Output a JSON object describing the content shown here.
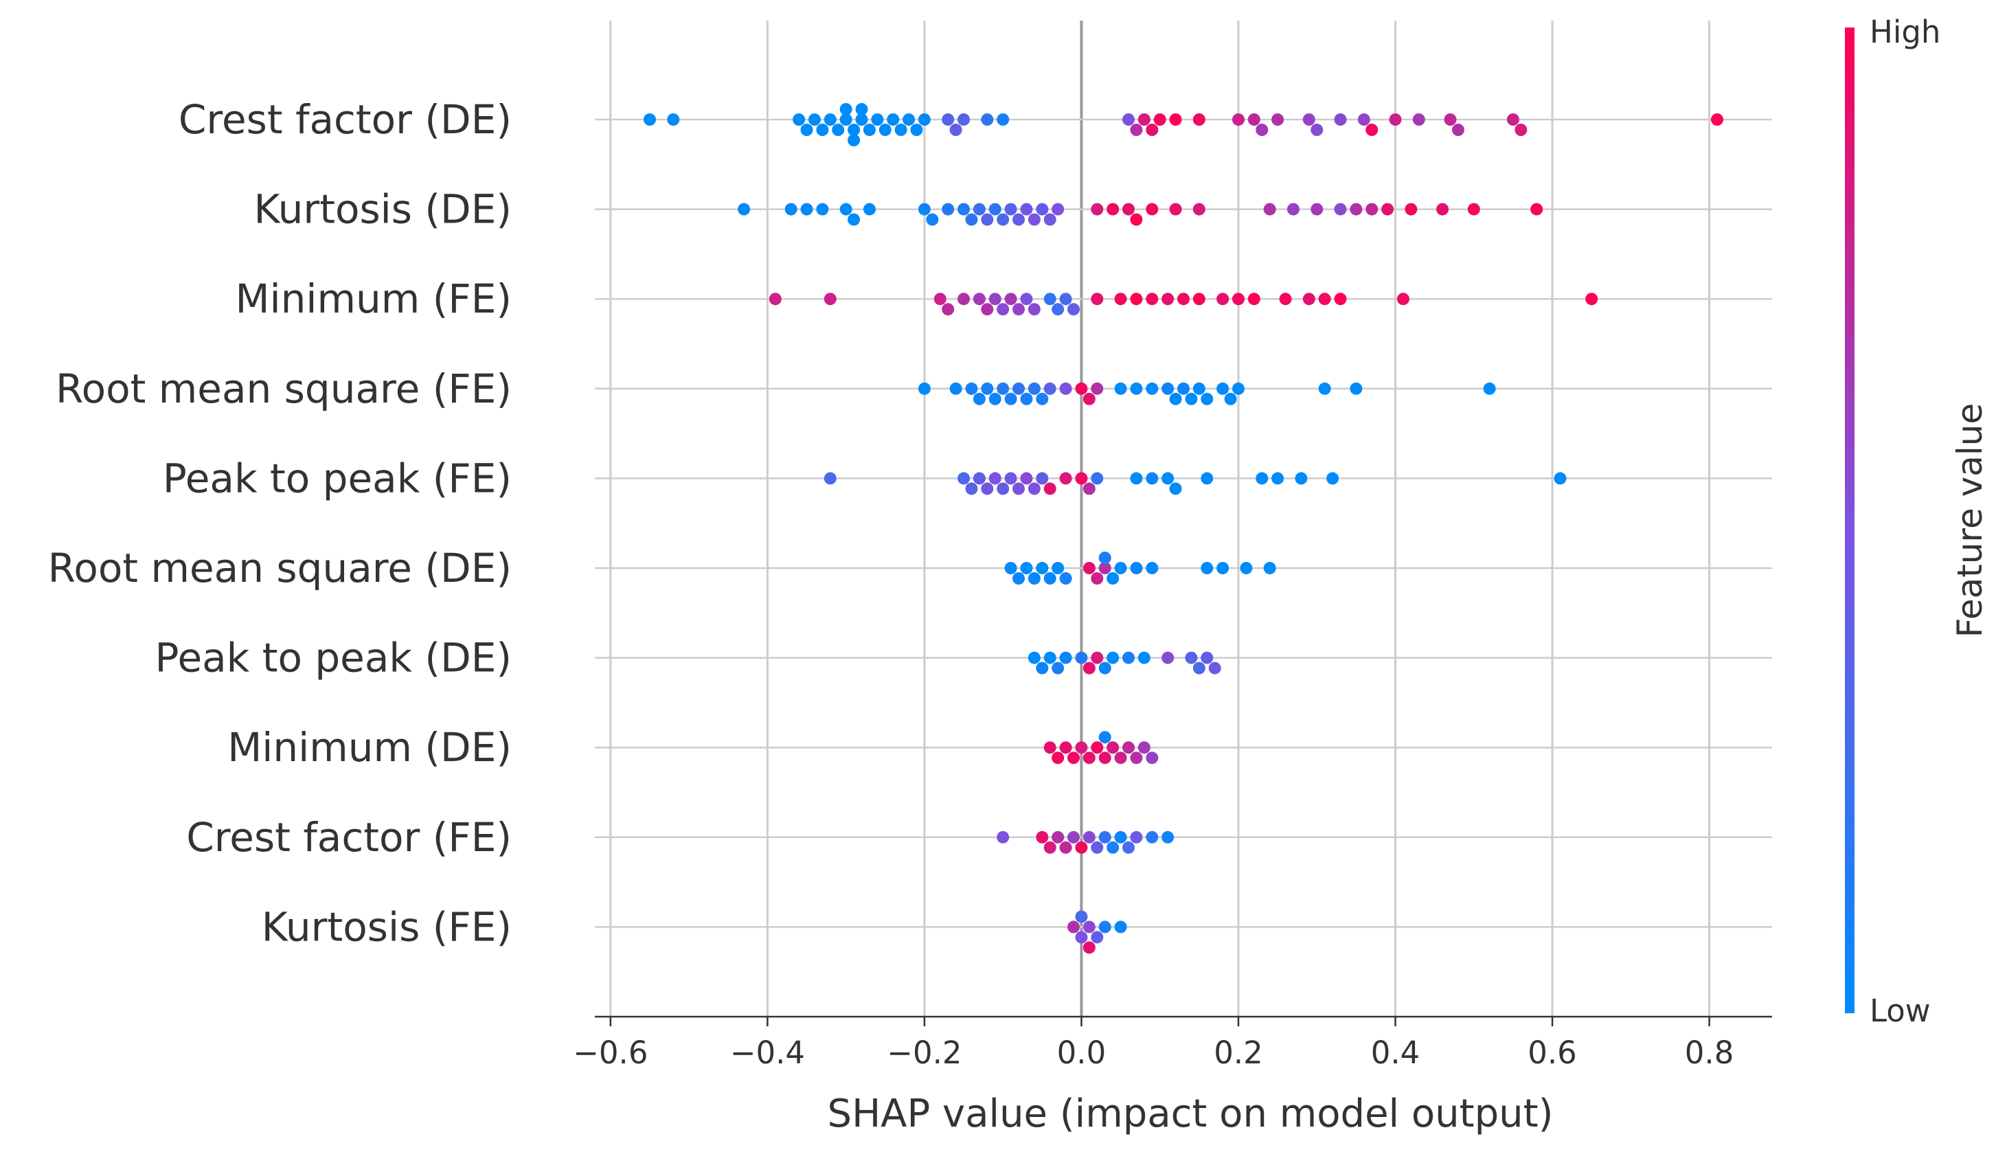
{
  "chart_data": {
    "type": "scatter",
    "subtype": "shap-beeswarm-summary",
    "xlabel": "SHAP value (impact on model output)",
    "xlim": [
      -0.62,
      0.88
    ],
    "xticks": [
      -0.6,
      -0.4,
      -0.2,
      0.0,
      0.2,
      0.4,
      0.6,
      0.8
    ],
    "xtick_labels": [
      "−0.6",
      "−0.4",
      "−0.2",
      "0.0",
      "0.2",
      "0.4",
      "0.6",
      "0.8"
    ],
    "grid": true,
    "colorbar": {
      "title": "Feature value",
      "high_label": "High",
      "low_label": "Low",
      "low_color": "#008bfb",
      "high_color": "#ff0052"
    },
    "features": [
      {
        "name": "Crest factor (DE)",
        "points": [
          [
            -0.55,
            0
          ],
          [
            -0.52,
            0
          ],
          [
            -0.36,
            0
          ],
          [
            -0.35,
            0
          ],
          [
            -0.34,
            0
          ],
          [
            -0.33,
            0
          ],
          [
            -0.32,
            0
          ],
          [
            -0.31,
            0
          ],
          [
            -0.3,
            0
          ],
          [
            -0.3,
            0
          ],
          [
            -0.29,
            0
          ],
          [
            -0.29,
            0
          ],
          [
            -0.28,
            0
          ],
          [
            -0.28,
            0
          ],
          [
            -0.27,
            0
          ],
          [
            -0.26,
            0
          ],
          [
            -0.25,
            0
          ],
          [
            -0.24,
            0
          ],
          [
            -0.23,
            0
          ],
          [
            -0.22,
            0
          ],
          [
            -0.21,
            0
          ],
          [
            -0.2,
            0
          ],
          [
            -0.17,
            0.35
          ],
          [
            -0.16,
            0.4
          ],
          [
            -0.15,
            0.35
          ],
          [
            -0.12,
            0.2
          ],
          [
            -0.1,
            0.1
          ],
          [
            0.06,
            0.5
          ],
          [
            0.07,
            0.7
          ],
          [
            0.08,
            0.85
          ],
          [
            0.09,
            0.9
          ],
          [
            0.1,
            0.95
          ],
          [
            0.12,
            1
          ],
          [
            0.15,
            0.95
          ],
          [
            0.2,
            0.8
          ],
          [
            0.22,
            0.75
          ],
          [
            0.23,
            0.65
          ],
          [
            0.25,
            0.7
          ],
          [
            0.29,
            0.6
          ],
          [
            0.3,
            0.55
          ],
          [
            0.33,
            0.55
          ],
          [
            0.36,
            0.6
          ],
          [
            0.37,
            0.95
          ],
          [
            0.4,
            0.8
          ],
          [
            0.43,
            0.65
          ],
          [
            0.47,
            0.75
          ],
          [
            0.48,
            0.7
          ],
          [
            0.55,
            0.8
          ],
          [
            0.56,
            0.85
          ],
          [
            0.81,
            1
          ]
        ]
      },
      {
        "name": "Kurtosis (DE)",
        "points": [
          [
            -0.43,
            0
          ],
          [
            -0.37,
            0
          ],
          [
            -0.35,
            0
          ],
          [
            -0.33,
            0
          ],
          [
            -0.3,
            0
          ],
          [
            -0.29,
            0
          ],
          [
            -0.27,
            0
          ],
          [
            -0.2,
            0.05
          ],
          [
            -0.19,
            0.1
          ],
          [
            -0.17,
            0.15
          ],
          [
            -0.15,
            0.1
          ],
          [
            -0.14,
            0.2
          ],
          [
            -0.13,
            0.25
          ],
          [
            -0.12,
            0.35
          ],
          [
            -0.11,
            0.2
          ],
          [
            -0.1,
            0.3
          ],
          [
            -0.09,
            0.35
          ],
          [
            -0.08,
            0.4
          ],
          [
            -0.07,
            0.45
          ],
          [
            -0.06,
            0.5
          ],
          [
            -0.05,
            0.4
          ],
          [
            -0.04,
            0.45
          ],
          [
            -0.03,
            0.5
          ],
          [
            0.02,
            0.85
          ],
          [
            0.04,
            0.95
          ],
          [
            0.06,
            0.9
          ],
          [
            0.07,
            1
          ],
          [
            0.09,
            0.95
          ],
          [
            0.12,
            0.9
          ],
          [
            0.15,
            0.85
          ],
          [
            0.24,
            0.7
          ],
          [
            0.27,
            0.6
          ],
          [
            0.3,
            0.65
          ],
          [
            0.33,
            0.55
          ],
          [
            0.35,
            0.7
          ],
          [
            0.37,
            0.75
          ],
          [
            0.39,
            0.9
          ],
          [
            0.42,
            0.95
          ],
          [
            0.46,
            0.9
          ],
          [
            0.5,
            0.95
          ],
          [
            0.58,
            1
          ]
        ]
      },
      {
        "name": "Minimum (FE)",
        "points": [
          [
            -0.39,
            0.8
          ],
          [
            -0.32,
            0.8
          ],
          [
            -0.18,
            0.8
          ],
          [
            -0.17,
            0.75
          ],
          [
            -0.15,
            0.7
          ],
          [
            -0.13,
            0.65
          ],
          [
            -0.12,
            0.7
          ],
          [
            -0.11,
            0.6
          ],
          [
            -0.1,
            0.55
          ],
          [
            -0.09,
            0.65
          ],
          [
            -0.08,
            0.6
          ],
          [
            -0.07,
            0.5
          ],
          [
            -0.06,
            0.55
          ],
          [
            -0.04,
            0.2
          ],
          [
            -0.03,
            0.25
          ],
          [
            -0.02,
            0.3
          ],
          [
            -0.01,
            0.4
          ],
          [
            0.02,
            0.9
          ],
          [
            0.05,
            0.95
          ],
          [
            0.07,
            1
          ],
          [
            0.09,
            0.95
          ],
          [
            0.11,
            0.9
          ],
          [
            0.13,
            0.95
          ],
          [
            0.15,
            1
          ],
          [
            0.18,
            0.9
          ],
          [
            0.2,
            0.95
          ],
          [
            0.22,
            1
          ],
          [
            0.26,
            0.95
          ],
          [
            0.29,
            0.9
          ],
          [
            0.31,
            0.95
          ],
          [
            0.33,
            1
          ],
          [
            0.41,
            0.95
          ],
          [
            0.65,
            1
          ]
        ]
      },
      {
        "name": "Root mean square (FE)",
        "points": [
          [
            -0.2,
            0
          ],
          [
            -0.16,
            0.05
          ],
          [
            -0.14,
            0.1
          ],
          [
            -0.13,
            0.05
          ],
          [
            -0.12,
            0.1
          ],
          [
            -0.11,
            0.05
          ],
          [
            -0.1,
            0.15
          ],
          [
            -0.09,
            0.1
          ],
          [
            -0.08,
            0.2
          ],
          [
            -0.07,
            0.1
          ],
          [
            -0.06,
            0.15
          ],
          [
            -0.05,
            0.1
          ],
          [
            -0.04,
            0.35
          ],
          [
            -0.02,
            0.5
          ],
          [
            0.0,
            0.95
          ],
          [
            0.01,
            0.9
          ],
          [
            0.02,
            0.7
          ],
          [
            0.05,
            0
          ],
          [
            0.07,
            0
          ],
          [
            0.09,
            0
          ],
          [
            0.11,
            0.05
          ],
          [
            0.12,
            0
          ],
          [
            0.13,
            0.05
          ],
          [
            0.14,
            0
          ],
          [
            0.15,
            0
          ],
          [
            0.16,
            0
          ],
          [
            0.18,
            0
          ],
          [
            0.19,
            0
          ],
          [
            0.2,
            0
          ],
          [
            0.31,
            0
          ],
          [
            0.35,
            0
          ],
          [
            0.52,
            0
          ]
        ]
      },
      {
        "name": "Peak to peak (FE)",
        "points": [
          [
            -0.32,
            0.3
          ],
          [
            -0.15,
            0.3
          ],
          [
            -0.14,
            0.35
          ],
          [
            -0.13,
            0.4
          ],
          [
            -0.12,
            0.45
          ],
          [
            -0.11,
            0.5
          ],
          [
            -0.1,
            0.4
          ],
          [
            -0.09,
            0.45
          ],
          [
            -0.08,
            0.5
          ],
          [
            -0.07,
            0.55
          ],
          [
            -0.06,
            0.5
          ],
          [
            -0.05,
            0.4
          ],
          [
            -0.04,
            0.9
          ],
          [
            -0.02,
            0.85
          ],
          [
            0.0,
            0.95
          ],
          [
            0.01,
            0.7
          ],
          [
            0.02,
            0.2
          ],
          [
            0.07,
            0
          ],
          [
            0.09,
            0.05
          ],
          [
            0.11,
            0
          ],
          [
            0.12,
            0
          ],
          [
            0.16,
            0
          ],
          [
            0.23,
            0
          ],
          [
            0.25,
            0
          ],
          [
            0.28,
            0
          ],
          [
            0.32,
            0
          ],
          [
            0.61,
            0
          ]
        ]
      },
      {
        "name": "Root mean square (DE)",
        "points": [
          [
            -0.09,
            0
          ],
          [
            -0.08,
            0.05
          ],
          [
            -0.07,
            0
          ],
          [
            -0.06,
            0.05
          ],
          [
            -0.05,
            0
          ],
          [
            -0.04,
            0.05
          ],
          [
            -0.03,
            0
          ],
          [
            -0.02,
            0.1
          ],
          [
            0.01,
            0.9
          ],
          [
            0.02,
            0.8
          ],
          [
            0.03,
            0.7
          ],
          [
            0.03,
            0.1
          ],
          [
            0.04,
            0
          ],
          [
            0.05,
            0
          ],
          [
            0.07,
            0.05
          ],
          [
            0.09,
            0
          ],
          [
            0.16,
            0
          ],
          [
            0.18,
            0
          ],
          [
            0.21,
            0
          ],
          [
            0.24,
            0
          ]
        ]
      },
      {
        "name": "Peak to peak (DE)",
        "points": [
          [
            -0.06,
            0
          ],
          [
            -0.05,
            0.05
          ],
          [
            -0.04,
            0
          ],
          [
            -0.03,
            0.1
          ],
          [
            -0.02,
            0.05
          ],
          [
            0.0,
            0.15
          ],
          [
            0.01,
            0.9
          ],
          [
            0.02,
            0.85
          ],
          [
            0.03,
            0.05
          ],
          [
            0.04,
            0
          ],
          [
            0.06,
            0.1
          ],
          [
            0.08,
            0
          ],
          [
            0.11,
            0.55
          ],
          [
            0.14,
            0.35
          ],
          [
            0.15,
            0.3
          ],
          [
            0.16,
            0.4
          ],
          [
            0.17,
            0.45
          ]
        ]
      },
      {
        "name": "Minimum (DE)",
        "points": [
          [
            -0.04,
            0.9
          ],
          [
            -0.03,
            0.95
          ],
          [
            -0.02,
            0.9
          ],
          [
            -0.01,
            0.95
          ],
          [
            0.0,
            0.85
          ],
          [
            0.01,
            0.9
          ],
          [
            0.02,
            0.95
          ],
          [
            0.03,
            0.9
          ],
          [
            0.04,
            0.85
          ],
          [
            0.05,
            0.8
          ],
          [
            0.06,
            0.75
          ],
          [
            0.07,
            0.7
          ],
          [
            0.08,
            0.65
          ],
          [
            0.09,
            0.6
          ],
          [
            0.03,
            0.05
          ]
        ]
      },
      {
        "name": "Crest factor (FE)",
        "points": [
          [
            -0.1,
            0.5
          ],
          [
            -0.05,
            0.9
          ],
          [
            -0.04,
            0.85
          ],
          [
            -0.03,
            0.7
          ],
          [
            -0.02,
            0.75
          ],
          [
            -0.01,
            0.6
          ],
          [
            0.0,
            0.95
          ],
          [
            0.01,
            0.55
          ],
          [
            0.02,
            0.4
          ],
          [
            0.03,
            0.2
          ],
          [
            0.04,
            0.1
          ],
          [
            0.05,
            0.05
          ],
          [
            0.06,
            0.3
          ],
          [
            0.07,
            0.45
          ],
          [
            0.09,
            0.15
          ],
          [
            0.11,
            0.05
          ]
        ]
      },
      {
        "name": "Kurtosis (FE)",
        "points": [
          [
            -0.01,
            0.7
          ],
          [
            0.0,
            0.5
          ],
          [
            0.0,
            0.3
          ],
          [
            0.01,
            0.55
          ],
          [
            0.01,
            0.9
          ],
          [
            0.02,
            0.4
          ],
          [
            0.03,
            0.1
          ],
          [
            0.05,
            0.05
          ]
        ]
      }
    ]
  }
}
